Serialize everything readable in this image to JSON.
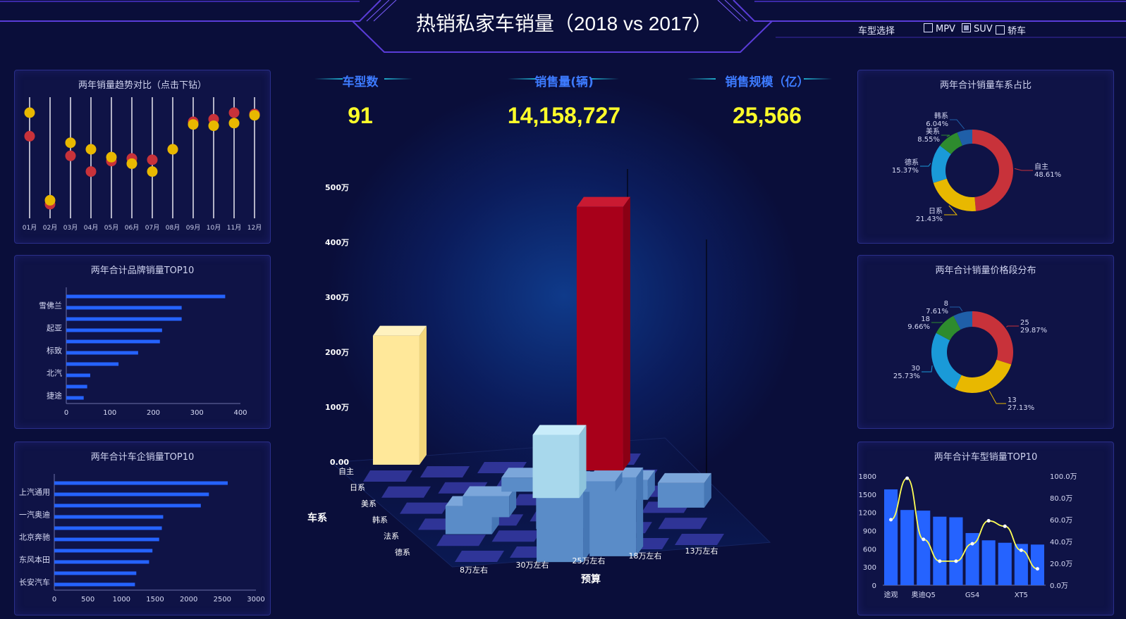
{
  "header": {
    "title": "热销私家车销量（2018 vs 2017）",
    "selector_label": "车型选择",
    "options": [
      {
        "label": "MPV",
        "checked": false
      },
      {
        "label": "SUV",
        "checked": true
      },
      {
        "label": "轿车",
        "checked": false
      }
    ]
  },
  "kpis": [
    {
      "label": "车型数",
      "value": "91"
    },
    {
      "label": "销售量(辆)",
      "value": "14,158,727"
    },
    {
      "label": "销售规模（亿）",
      "value": "25,566"
    }
  ],
  "colors": {
    "red": "#c8323a",
    "yellow": "#e8b800",
    "blue": "#2563ff",
    "kpi": "#ffff2a",
    "green": "#2e8b2e",
    "lightblue": "#1a9ad8",
    "darkblue": "#1f5fa8"
  },
  "chart_data": [
    {
      "id": "trend",
      "type": "scatter",
      "title": "两年销量趋势对比（点击下钻）",
      "categories": [
        "01月",
        "02月",
        "03月",
        "04月",
        "05月",
        "06月",
        "07月",
        "08月",
        "09月",
        "10月",
        "11月",
        "12月"
      ],
      "series": [
        {
          "name": "2017",
          "color": "#c8323a",
          "values": [
            0.82,
            0.3,
            0.67,
            0.55,
            0.63,
            0.65,
            0.64,
            0.72,
            0.93,
            0.95,
            1.0,
            0.99
          ]
        },
        {
          "name": "2018",
          "color": "#e8b800",
          "values": [
            1.0,
            0.33,
            0.77,
            0.72,
            0.66,
            0.61,
            0.55,
            0.72,
            0.91,
            0.9,
            0.92,
            0.98
          ]
        }
      ]
    },
    {
      "id": "brand",
      "type": "bar",
      "title": "两年合计品牌销量TOP10",
      "categories": [
        "雪佛兰",
        "",
        "起亚",
        "",
        "标致",
        "",
        "北汽",
        "",
        "捷途",
        ""
      ],
      "values": [
        365,
        265,
        265,
        220,
        215,
        165,
        120,
        55,
        48,
        40
      ],
      "xlim": [
        0,
        400
      ],
      "xticks": [
        "0",
        "100",
        "200",
        "300",
        "400"
      ]
    },
    {
      "id": "company",
      "type": "bar",
      "title": "两年合计车企销量TOP10",
      "categories": [
        "上汽通用",
        "",
        "一汽奥迪",
        "",
        "北京奔驰",
        "",
        "东风本田",
        "",
        "长安汽车",
        ""
      ],
      "values": [
        2580,
        2300,
        2180,
        1620,
        1600,
        1560,
        1460,
        1410,
        1220,
        1200
      ],
      "xlim": [
        0,
        3000
      ],
      "xticks": [
        "0",
        "500",
        "1000",
        "1500",
        "2000",
        "2500",
        "3000"
      ]
    },
    {
      "id": "bar3d",
      "type": "bar",
      "xlabel": "预算",
      "ylabel": "车系",
      "zticks": [
        "0.00",
        "100万",
        "200万",
        "300万",
        "400万",
        "500万"
      ],
      "budget": [
        "8万左右",
        "30万左右",
        "25万左右",
        "18万左右",
        "13万左右"
      ],
      "series_names": [
        "自主",
        "日系",
        "美系",
        "韩系",
        "法系",
        "德系"
      ],
      "highlight": [
        {
          "series": "自主",
          "budget": "13万左右",
          "value": 235
        },
        {
          "series": "德系",
          "budget": "18万左右",
          "value": 480
        },
        {
          "series": "美系",
          "budget": "25万左右",
          "value": 115
        }
      ]
    },
    {
      "id": "origin",
      "type": "pie",
      "title": "两年合计销量车系占比",
      "labels": [
        "自主",
        "日系",
        "德系",
        "美系",
        "韩系"
      ],
      "values": [
        48.61,
        21.43,
        15.37,
        8.55,
        6.04
      ],
      "percent_labels": [
        "48.61%",
        "21.43%",
        "15.37%",
        "8.55%",
        "6.04%"
      ],
      "colors": [
        "#c8323a",
        "#e8b800",
        "#1a9ad8",
        "#2e8b2e",
        "#1f5fa8"
      ]
    },
    {
      "id": "price",
      "type": "pie",
      "title": "两年合计销量价格段分布",
      "labels": [
        "25",
        "13",
        "30",
        "18",
        "8"
      ],
      "values": [
        29.87,
        27.13,
        25.73,
        9.66,
        7.61
      ],
      "percent_labels": [
        "29.87%",
        "27.13%",
        "25.73%",
        "9.66%",
        "7.61%"
      ],
      "colors": [
        "#c8323a",
        "#e8b800",
        "#1a9ad8",
        "#2e8b2e",
        "#1f5fa8"
      ]
    },
    {
      "id": "model",
      "type": "bar",
      "title": "两年合计车型销量TOP10",
      "categories": [
        "途观",
        "",
        "奥迪Q5",
        "",
        "",
        "GS4",
        "",
        "",
        "XT5",
        ""
      ],
      "xtick_labels": [
        "途观",
        "奥迪Q5",
        "GS4",
        "XT5"
      ],
      "values": [
        1580,
        1240,
        1230,
        1130,
        1120,
        860,
        740,
        700,
        680,
        670
      ],
      "line_values": [
        60,
        98,
        42,
        22,
        22,
        38,
        59,
        54,
        32,
        15
      ],
      "ylim_left": [
        0,
        1800
      ],
      "yticks_left": [
        "0",
        "300",
        "600",
        "900",
        "1200",
        "1500",
        "1800"
      ],
      "ylim_right": [
        0,
        100
      ],
      "yticks_right": [
        "0.0万",
        "20.0万",
        "40.0万",
        "60.0万",
        "80.0万",
        "100.0万"
      ]
    }
  ]
}
